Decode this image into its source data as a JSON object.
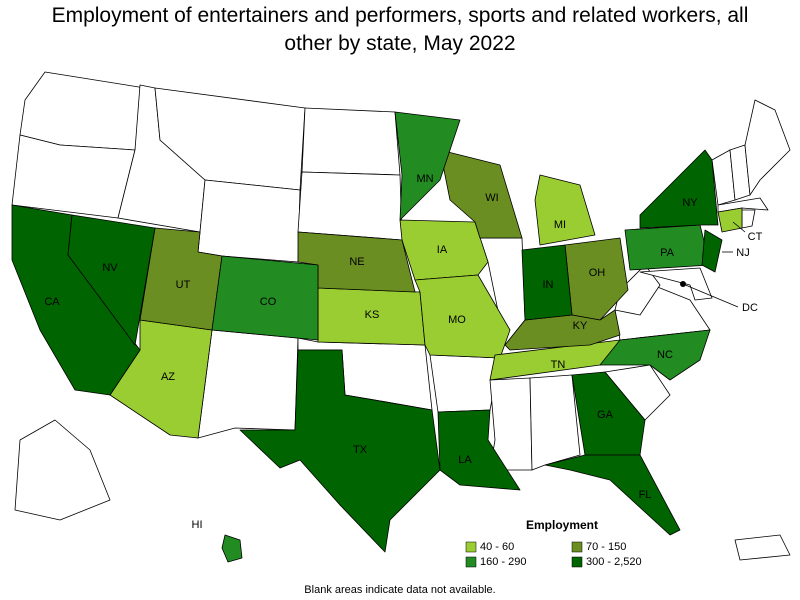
{
  "title": "Employment of entertainers and performers, sports and related workers, all other by state, May 2022",
  "legend": {
    "title": "Employment",
    "items": [
      {
        "label": "40 - 60",
        "color": "#9acd32",
        "states": [
          "AZ",
          "KS",
          "IA",
          "MO",
          "MI",
          "TN",
          "CT"
        ]
      },
      {
        "label": "70 - 150",
        "color": "#6b8e23",
        "states": [
          "UT",
          "NE",
          "WI",
          "OH",
          "KY"
        ]
      },
      {
        "label": "160 - 290",
        "color": "#228b22",
        "states": [
          "CO",
          "MN",
          "PA",
          "NC",
          "HI"
        ]
      },
      {
        "label": "300 - 2,520",
        "color": "#006400",
        "states": [
          "CA",
          "NV",
          "TX",
          "LA",
          "GA",
          "FL",
          "NY",
          "NJ",
          "IN"
        ]
      }
    ]
  },
  "callouts": [
    "DC"
  ],
  "footnote": "Blank areas indicate data not available."
}
